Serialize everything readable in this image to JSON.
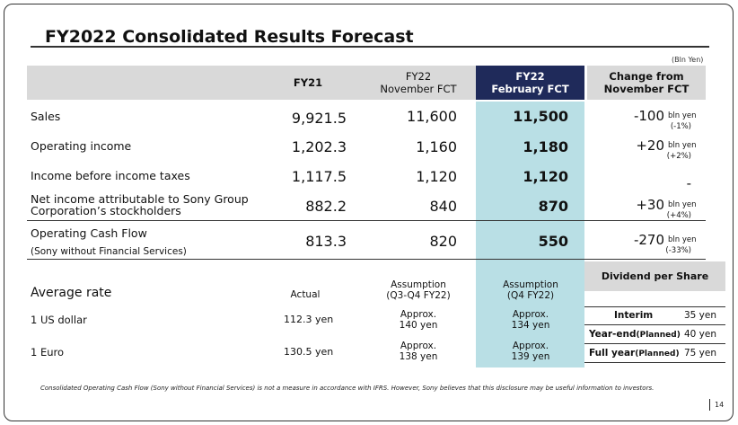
{
  "title": "FY2022 Consolidated Results Forecast",
  "unit": "(Bln Yen)",
  "headers": {
    "fy21": "FY21",
    "fy22_nov_line1": "FY22",
    "fy22_nov_line2": "November FCT",
    "fy22_feb_line1": "FY22",
    "fy22_feb_line2": "February FCT",
    "change_line1": "Change from",
    "change_line2": "November FCT"
  },
  "rows": [
    {
      "label": "Sales",
      "fy21": "9,921.5",
      "nov": "11,600",
      "feb": "11,500",
      "change": "-100",
      "change_unit": "bln yen",
      "change_pct": "(-1%)"
    },
    {
      "label": "Operating income",
      "fy21": "1,202.3",
      "nov": "1,160",
      "feb": "1,180",
      "change": "+20",
      "change_unit": "bln yen",
      "change_pct": "(+2%)"
    },
    {
      "label": "Income before income taxes",
      "fy21": "1,117.5",
      "nov": "1,120",
      "feb": "1,120",
      "change": "-",
      "change_unit": "",
      "change_pct": ""
    },
    {
      "label_line1": "Net income attributable to Sony Group",
      "label_line2": "Corporation’s stockholders",
      "fy21": "882.2",
      "nov": "840",
      "feb": "870",
      "change": "+30",
      "change_unit": "bln yen",
      "change_pct": "(+4%)"
    },
    {
      "label_line1": "Operating Cash Flow",
      "label_line2": "(Sony without Financial Services)",
      "fy21": "813.3",
      "nov": "820",
      "feb": "550",
      "change": "-270",
      "change_unit": "bln yen",
      "change_pct": "(-33%)"
    }
  ],
  "rates": {
    "heading": "Average rate",
    "actual_header": "Actual",
    "nov_header_line1": "Assumption",
    "nov_header_line2": "(Q3-Q4 FY22)",
    "feb_header_line1": "Assumption",
    "feb_header_line2": "(Q4 FY22)",
    "items": [
      {
        "label": "1 US dollar",
        "actual": "112.3 yen",
        "nov_line1": "Approx.",
        "nov_line2": "140 yen",
        "feb_line1": "Approx.",
        "feb_line2": "134 yen"
      },
      {
        "label": "1 Euro",
        "actual": "130.5 yen",
        "nov_line1": "Approx.",
        "nov_line2": "138 yen",
        "feb_line1": "Approx.",
        "feb_line2": "139 yen"
      }
    ]
  },
  "dividend": {
    "heading": "Dividend per Share",
    "items": [
      {
        "label": "Interim",
        "planned": "",
        "value": "35 yen"
      },
      {
        "label": "Year-end",
        "planned": "(Planned)",
        "value": "40 yen"
      },
      {
        "label": "Full year",
        "planned": "(Planned)",
        "value": "75 yen"
      }
    ]
  },
  "footnote": "Consolidated Operating Cash Flow (Sony without Financial Services) is not a measure in accordance with IFRS.  However, Sony believes that this disclosure may be useful information to investors.",
  "page_number": "14",
  "colors": {
    "header_gray": "#d9d9d9",
    "header_navy": "#1f2a5a",
    "teal_column": "#b9dfe5"
  }
}
